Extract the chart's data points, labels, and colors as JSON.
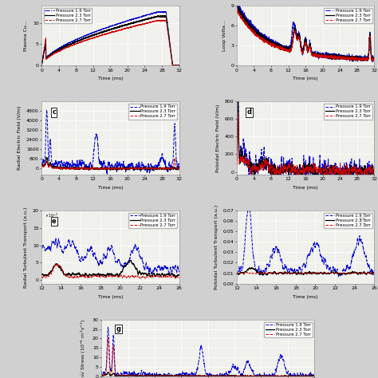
{
  "pressures": [
    1.9,
    2.3,
    2.7
  ],
  "colors": [
    "#0000cc",
    "#000000",
    "#cc0000"
  ],
  "ls_ab": [
    "-.",
    "-",
    "--"
  ],
  "ls_rest": [
    "--",
    "-",
    "--"
  ],
  "bg_color": "#f2f2ee",
  "fig_bg": "#d8d8d8",
  "grid_color": "white",
  "xlim_full": [
    0,
    32
  ],
  "xlim_zoom": [
    12,
    26
  ],
  "xticks_full": [
    0,
    4,
    8,
    12,
    16,
    20,
    24,
    28,
    32
  ],
  "xticks_zoom": [
    12,
    14,
    16,
    18,
    20,
    22,
    24,
    26
  ],
  "xlabel": "Time (ms)",
  "panel_label_fontsize": 6,
  "tick_fontsize": 4.5,
  "ylabel_fontsize": 4.5,
  "legend_fontsize": 3.8
}
